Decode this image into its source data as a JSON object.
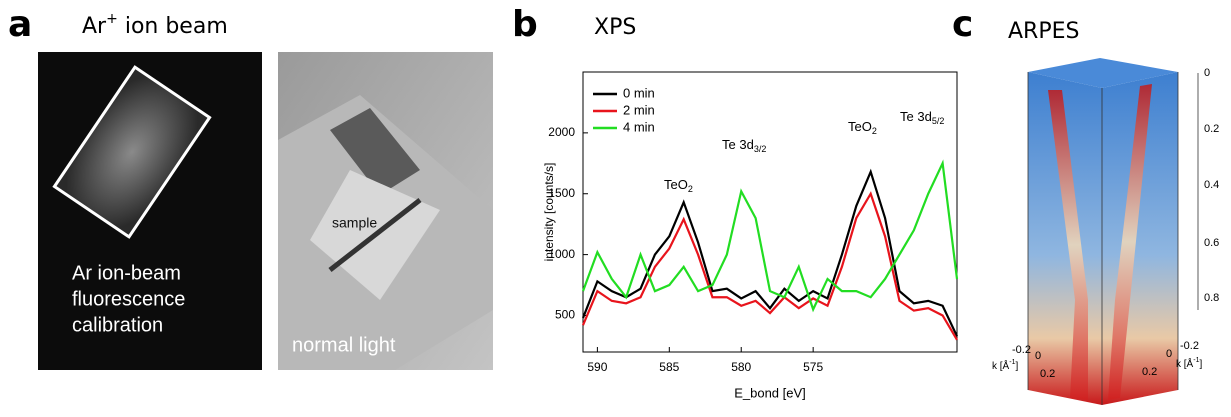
{
  "panels": {
    "a": {
      "letter": "a",
      "title": [
        "Ar",
        "+",
        " ion beam"
      ],
      "left_image_text": [
        "Ar ion-beam",
        "fluorescence",
        "calibration"
      ],
      "right_image_text": [
        "sample",
        "normal light"
      ]
    },
    "b": {
      "letter": "b",
      "title": "XPS"
    },
    "c": {
      "letter": "c",
      "title": "ARPES",
      "depth_ticks": [
        "0",
        "0.2",
        "0.4",
        "0.6",
        "0.8"
      ],
      "k_ticks_left": [
        "-0.2",
        "0",
        "0.2"
      ],
      "k_ticks_right": [
        "-0.2",
        "0",
        "0.2"
      ],
      "k_label": [
        "k [Å",
        "-1",
        "]"
      ]
    }
  },
  "chart_data": {
    "type": "line",
    "x_label": "E_bond [eV]",
    "y_label": "intensity [counts/s]",
    "annotations": [
      [
        "TeO",
        "2"
      ],
      [
        "Te 3d",
        "3/2"
      ],
      [
        "TeO",
        "2"
      ],
      [
        "Te 3d",
        "5/2"
      ]
    ],
    "x": [
      591,
      590,
      589,
      588,
      587,
      586,
      585,
      584,
      583,
      582,
      581,
      580,
      579,
      578,
      577,
      576,
      575,
      574,
      573,
      572,
      571,
      570,
      569,
      568,
      567,
      566,
      565
    ],
    "series": [
      {
        "name": "0 min",
        "color": "#000000",
        "values": [
          480,
          780,
          700,
          650,
          720,
          1000,
          1150,
          1430,
          1100,
          700,
          720,
          640,
          700,
          560,
          720,
          620,
          700,
          640,
          1000,
          1400,
          1680,
          1300,
          700,
          600,
          620,
          580,
          330
        ]
      },
      {
        "name": "2 min",
        "color": "#e8141c",
        "values": [
          420,
          700,
          620,
          600,
          650,
          900,
          1050,
          1290,
          1000,
          650,
          650,
          580,
          620,
          520,
          650,
          560,
          640,
          580,
          900,
          1300,
          1500,
          1150,
          620,
          540,
          560,
          500,
          300
        ]
      },
      {
        "name": "4 min",
        "color": "#22dd22",
        "values": [
          700,
          1020,
          800,
          650,
          1000,
          700,
          750,
          900,
          700,
          750,
          1000,
          1520,
          1300,
          700,
          650,
          900,
          550,
          800,
          700,
          700,
          650,
          800,
          1000,
          1200,
          1500,
          1750,
          800
        ]
      }
    ],
    "xlim": [
      591,
      565
    ],
    "xticks": [
      590,
      585,
      580,
      575
    ],
    "ylim": [
      200,
      2500
    ],
    "yticks": [
      500,
      1000,
      1500,
      2000
    ],
    "legend": "upper left"
  }
}
